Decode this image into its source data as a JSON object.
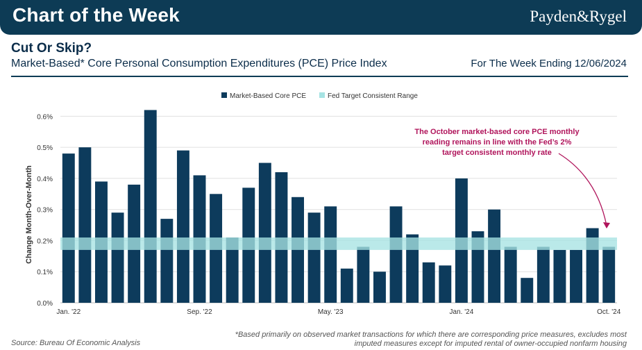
{
  "header": {
    "banner_title": "Chart of the Week",
    "logo_text": "Payden&Rygel",
    "subtitle": "Cut Or Skip?",
    "chart_title": "Market-Based* Core Personal Consumption Expenditures (PCE) Price Index",
    "week_ending": "For The Week Ending 12/06/2024"
  },
  "colors": {
    "banner": "#0d3b55",
    "bar": "#0d3b5c",
    "band": "#a6e3e3",
    "annotation": "#b0145b"
  },
  "chart_data": {
    "type": "bar",
    "ylabel": "Change Month-Over-Month",
    "ylim": [
      0,
      0.65
    ],
    "yticks": [
      0,
      0.1,
      0.2,
      0.3,
      0.4,
      0.5,
      0.6
    ],
    "ytick_labels": [
      "0.0%",
      "0.1%",
      "0.2%",
      "0.3%",
      "0.4%",
      "0.5%",
      "0.6%"
    ],
    "x_tick_labels": [
      {
        "index": 0,
        "label": "Jan. '22"
      },
      {
        "index": 8,
        "label": "Sep. '22"
      },
      {
        "index": 16,
        "label": "May. '23"
      },
      {
        "index": 24,
        "label": "Jan. '24"
      },
      {
        "index": 33,
        "label": "Oct. '24"
      }
    ],
    "categories": [
      "Jan-22",
      "Feb-22",
      "Mar-22",
      "Apr-22",
      "May-22",
      "Jun-22",
      "Jul-22",
      "Aug-22",
      "Sep-22",
      "Oct-22",
      "Nov-22",
      "Dec-22",
      "Jan-23",
      "Feb-23",
      "Mar-23",
      "Apr-23",
      "May-23",
      "Jun-23",
      "Jul-23",
      "Aug-23",
      "Sep-23",
      "Oct-23",
      "Nov-23",
      "Dec-23",
      "Jan-24",
      "Feb-24",
      "Mar-24",
      "Apr-24",
      "May-24",
      "Jun-24",
      "Jul-24",
      "Aug-24",
      "Sep-24",
      "Oct-24"
    ],
    "series": [
      {
        "name": "Market-Based Core PCE",
        "values": [
          0.48,
          0.5,
          0.39,
          0.29,
          0.38,
          0.62,
          0.27,
          0.49,
          0.41,
          0.35,
          0.21,
          0.37,
          0.45,
          0.42,
          0.34,
          0.29,
          0.31,
          0.11,
          0.18,
          0.1,
          0.31,
          0.22,
          0.13,
          0.12,
          0.4,
          0.23,
          0.3,
          0.18,
          0.08,
          0.18,
          0.17,
          0.17,
          0.24,
          0.18
        ]
      }
    ],
    "band": {
      "name": "Fed Target Consistent Range",
      "low": 0.17,
      "high": 0.21
    },
    "annotation": "The October market-based core PCE monthly reading remains in line with the Fed's 2% target consistent monthly rate",
    "annotation_lines": [
      "The October market-based core PCE monthly",
      "reading remains in line with the Fed’s 2%",
      "target consistent monthly rate"
    ]
  },
  "footer": {
    "source": "Source: Bureau Of Economic Analysis",
    "note_line1": "*Based primarily on observed market transactions for which there are corresponding price measures, excludes most",
    "note_line2": "imputed measures except for imputed rental of owner-occupied nonfarm housing"
  }
}
